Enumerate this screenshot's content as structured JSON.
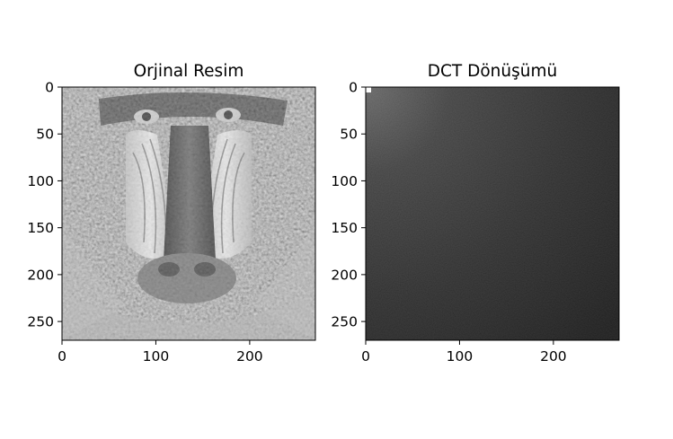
{
  "chart_data": [
    {
      "type": "heatmap",
      "title": "Orjinal Resim",
      "colormap": "gray",
      "content": "image",
      "xlim": [
        0,
        270
      ],
      "ylim": [
        270,
        0
      ],
      "xticks": [
        0,
        100,
        200
      ],
      "yticks": [
        0,
        50,
        100,
        150,
        200,
        250
      ],
      "xticklabels": [
        "0",
        "100",
        "200"
      ],
      "yticklabels": [
        "0",
        "50",
        "100",
        "150",
        "200",
        "250"
      ]
    },
    {
      "type": "heatmap",
      "title": "DCT Dönüşümü",
      "colormap": "gray",
      "content": "dct-spectrum",
      "xlim": [
        0,
        270
      ],
      "ylim": [
        270,
        0
      ],
      "xticks": [
        0,
        100,
        200
      ],
      "yticks": [
        0,
        50,
        100,
        150,
        200,
        250
      ],
      "xticklabels": [
        "0",
        "100",
        "200"
      ],
      "yticklabels": [
        "0",
        "50",
        "100",
        "150",
        "200",
        "250"
      ]
    }
  ]
}
